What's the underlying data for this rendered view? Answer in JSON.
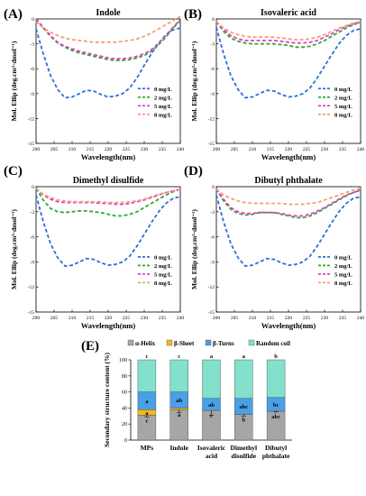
{
  "chart_data": [
    {
      "panel": "(A)",
      "type": "line",
      "title": "Indole",
      "xlabel": "Wavelength(nm)",
      "ylabel": "Mol. Ellip (deg.cm²·dmol⁻¹)",
      "xlim": [
        200,
        240
      ],
      "ylim": [
        -15,
        0
      ],
      "x_ticks": [
        "200",
        "205",
        "210",
        "215",
        "220",
        "225",
        "230",
        "235",
        "240"
      ],
      "y_ticks": [
        "0",
        "-3",
        "-6",
        "-9",
        "-12",
        "-15"
      ],
      "legend_position": "right",
      "series": [
        {
          "name": "0 mg/L",
          "color": "#2e6fd8",
          "x": [
            200,
            202,
            204,
            206,
            208,
            210,
            212,
            214,
            216,
            218,
            220,
            222,
            224,
            226,
            228,
            230,
            232,
            234,
            236,
            238,
            240
          ],
          "y": [
            -1.2,
            -4.2,
            -6.8,
            -8.5,
            -9.5,
            -9.4,
            -9.0,
            -8.6,
            -8.7,
            -9.1,
            -9.4,
            -9.3,
            -9.0,
            -8.3,
            -7.1,
            -5.6,
            -4.2,
            -2.9,
            -1.9,
            -1.3,
            -1.1
          ]
        },
        {
          "name": "2 mg/L",
          "color": "#2eaa2e",
          "x": [
            200,
            202,
            204,
            206,
            208,
            210,
            212,
            214,
            216,
            218,
            220,
            222,
            224,
            226,
            228,
            230,
            232,
            234,
            236,
            238,
            240
          ],
          "y": [
            0,
            -1.1,
            -2.1,
            -2.9,
            -3.4,
            -3.8,
            -4.1,
            -4.3,
            -4.5,
            -4.7,
            -4.9,
            -5.0,
            -5.0,
            -4.9,
            -4.7,
            -4.4,
            -3.9,
            -3.1,
            -2.2,
            -1.1,
            -0.2
          ]
        },
        {
          "name": "5 mg/L",
          "color": "#e040c8",
          "x": [
            200,
            202,
            204,
            206,
            208,
            210,
            212,
            214,
            216,
            218,
            220,
            222,
            224,
            226,
            228,
            230,
            232,
            234,
            236,
            238,
            240
          ],
          "y": [
            0,
            -1.0,
            -2.0,
            -2.8,
            -3.3,
            -3.6,
            -3.9,
            -4.1,
            -4.3,
            -4.5,
            -4.7,
            -4.8,
            -4.8,
            -4.7,
            -4.5,
            -4.2,
            -3.7,
            -2.9,
            -2.0,
            -1.0,
            -0.1
          ]
        },
        {
          "name": "8 mg/L",
          "color": "#f0a078",
          "x": [
            200,
            202,
            204,
            206,
            208,
            210,
            212,
            214,
            216,
            218,
            220,
            222,
            224,
            226,
            228,
            230,
            232,
            234,
            236,
            238,
            240
          ],
          "y": [
            -0.3,
            -1.1,
            -1.6,
            -2.0,
            -2.3,
            -2.5,
            -2.6,
            -2.7,
            -2.8,
            -2.8,
            -2.8,
            -2.8,
            -2.7,
            -2.6,
            -2.4,
            -2.1,
            -1.7,
            -1.2,
            -0.7,
            -0.2,
            0.3
          ]
        }
      ]
    },
    {
      "panel": "(B)",
      "type": "line",
      "title": "Isovaleric acid",
      "xlabel": "Wavelength(nm)",
      "ylabel": "Mol. Ellip (deg.cm²·dmol⁻¹)",
      "xlim": [
        200,
        240
      ],
      "ylim": [
        -15,
        0
      ],
      "x_ticks": [
        "200",
        "205",
        "210",
        "215",
        "220",
        "225",
        "230",
        "235",
        "240"
      ],
      "y_ticks": [
        "0",
        "-3",
        "-6",
        "-9",
        "-12",
        "-15"
      ],
      "legend_position": "right",
      "series": [
        {
          "name": "0 mg/L",
          "color": "#2e6fd8",
          "x": [
            200,
            202,
            204,
            206,
            208,
            210,
            212,
            214,
            216,
            218,
            220,
            222,
            224,
            226,
            228,
            230,
            232,
            234,
            236,
            238,
            240
          ],
          "y": [
            -1.0,
            -4.2,
            -6.8,
            -8.5,
            -9.5,
            -9.4,
            -9.0,
            -8.6,
            -8.7,
            -9.1,
            -9.4,
            -9.3,
            -9.0,
            -8.3,
            -7.1,
            -5.7,
            -4.3,
            -3.0,
            -2.0,
            -1.4,
            -1.2
          ]
        },
        {
          "name": "2 mg/L",
          "color": "#2eaa2e",
          "x": [
            200,
            202,
            204,
            206,
            208,
            210,
            212,
            214,
            216,
            218,
            220,
            222,
            224,
            226,
            228,
            230,
            232,
            234,
            236,
            238,
            240
          ],
          "y": [
            -0.3,
            -1.5,
            -2.3,
            -2.7,
            -2.9,
            -3.0,
            -3.0,
            -3.0,
            -3.0,
            -3.1,
            -3.2,
            -3.4,
            -3.4,
            -3.3,
            -3.0,
            -2.6,
            -2.1,
            -1.6,
            -1.1,
            -0.7,
            -0.4
          ]
        },
        {
          "name": "5 mg/L",
          "color": "#e040c8",
          "x": [
            200,
            202,
            204,
            206,
            208,
            210,
            212,
            214,
            216,
            218,
            220,
            222,
            224,
            226,
            228,
            230,
            232,
            234,
            236,
            238,
            240
          ],
          "y": [
            -0.3,
            -1.3,
            -2.0,
            -2.4,
            -2.6,
            -2.6,
            -2.6,
            -2.6,
            -2.6,
            -2.7,
            -2.8,
            -2.9,
            -2.9,
            -2.8,
            -2.6,
            -2.2,
            -1.8,
            -1.3,
            -0.9,
            -0.6,
            -0.4
          ]
        },
        {
          "name": "8 mg/L",
          "color": "#f0a078",
          "x": [
            200,
            202,
            204,
            206,
            208,
            210,
            212,
            214,
            216,
            218,
            220,
            222,
            224,
            226,
            228,
            230,
            232,
            234,
            236,
            238,
            240
          ],
          "y": [
            -0.3,
            -1.1,
            -1.6,
            -1.9,
            -2.1,
            -2.2,
            -2.2,
            -2.2,
            -2.2,
            -2.3,
            -2.4,
            -2.5,
            -2.5,
            -2.4,
            -2.2,
            -1.9,
            -1.5,
            -1.1,
            -0.8,
            -0.5,
            -0.3
          ]
        }
      ]
    },
    {
      "panel": "(C)",
      "type": "line",
      "title": "Dimethyl disulfide",
      "xlabel": "Wavelength(nm)",
      "ylabel": "Mol. Ellip (deg.cm²·dmol⁻¹)",
      "xlim": [
        200,
        240
      ],
      "ylim": [
        -15,
        0
      ],
      "x_ticks": [
        "200",
        "205",
        "210",
        "215",
        "220",
        "225",
        "230",
        "235",
        "240"
      ],
      "y_ticks": [
        "0",
        "-3",
        "-6",
        "-9",
        "-12",
        "-15"
      ],
      "legend_position": "right",
      "series": [
        {
          "name": "0 mg/L",
          "color": "#2e6fd8",
          "x": [
            200,
            202,
            204,
            206,
            208,
            210,
            212,
            214,
            216,
            218,
            220,
            222,
            224,
            226,
            228,
            230,
            232,
            234,
            236,
            238,
            240
          ],
          "y": [
            -1.0,
            -4.2,
            -6.8,
            -8.5,
            -9.5,
            -9.4,
            -9.0,
            -8.6,
            -8.7,
            -9.1,
            -9.4,
            -9.3,
            -9.0,
            -8.3,
            -7.1,
            -5.7,
            -4.3,
            -3.0,
            -2.0,
            -1.4,
            -1.2
          ]
        },
        {
          "name": "2 mg/L",
          "color": "#2eaa2e",
          "x": [
            200,
            202,
            204,
            206,
            208,
            210,
            212,
            214,
            216,
            218,
            220,
            222,
            224,
            226,
            228,
            230,
            232,
            234,
            236,
            238,
            240
          ],
          "y": [
            -0.2,
            -1.6,
            -2.6,
            -3.0,
            -3.1,
            -3.0,
            -2.9,
            -2.9,
            -3.0,
            -3.1,
            -3.3,
            -3.5,
            -3.5,
            -3.3,
            -3.0,
            -2.5,
            -2.0,
            -1.5,
            -1.0,
            -0.6,
            -0.3
          ]
        },
        {
          "name": "5 mg/L",
          "color": "#e040c8",
          "x": [
            200,
            202,
            204,
            206,
            208,
            210,
            212,
            214,
            216,
            218,
            220,
            222,
            224,
            226,
            228,
            230,
            232,
            234,
            236,
            238,
            240
          ],
          "y": [
            -0.2,
            -1.0,
            -1.5,
            -1.8,
            -1.9,
            -1.9,
            -1.9,
            -1.9,
            -1.9,
            -2.0,
            -2.0,
            -2.1,
            -2.1,
            -2.0,
            -1.8,
            -1.6,
            -1.3,
            -1.0,
            -0.7,
            -0.5,
            -0.3
          ]
        },
        {
          "name": "8 mg/L",
          "color": "#f0a078",
          "x": [
            200,
            202,
            204,
            206,
            208,
            210,
            212,
            214,
            216,
            218,
            220,
            222,
            224,
            226,
            228,
            230,
            232,
            234,
            236,
            238,
            240
          ],
          "y": [
            -0.2,
            -0.9,
            -1.3,
            -1.6,
            -1.7,
            -1.8,
            -1.8,
            -1.8,
            -1.8,
            -1.8,
            -1.9,
            -1.9,
            -1.9,
            -1.8,
            -1.7,
            -1.5,
            -1.2,
            -0.9,
            -0.7,
            -0.5,
            -0.3
          ]
        }
      ]
    },
    {
      "panel": "(D)",
      "type": "line",
      "title": "Dibutyl phthalate",
      "xlabel": "Wavelength(nm)",
      "ylabel": "Mol. Ellip (deg.cm²·dmol⁻¹)",
      "xlim": [
        200,
        240
      ],
      "ylim": [
        -15,
        0
      ],
      "x_ticks": [
        "200",
        "205",
        "210",
        "215",
        "220",
        "225",
        "230",
        "235",
        "240"
      ],
      "y_ticks": [
        "0",
        "-3",
        "-6",
        "-9",
        "-12",
        "-15"
      ],
      "legend_position": "right",
      "series": [
        {
          "name": "0 mg/L",
          "color": "#2e6fd8",
          "x": [
            200,
            202,
            204,
            206,
            208,
            210,
            212,
            214,
            216,
            218,
            220,
            222,
            224,
            226,
            228,
            230,
            232,
            234,
            236,
            238,
            240
          ],
          "y": [
            -1.0,
            -4.2,
            -6.8,
            -8.5,
            -9.5,
            -9.4,
            -9.0,
            -8.6,
            -8.7,
            -9.1,
            -9.4,
            -9.3,
            -9.0,
            -8.3,
            -7.1,
            -5.7,
            -4.3,
            -3.0,
            -2.0,
            -1.4,
            -1.2
          ]
        },
        {
          "name": "2 mg/L",
          "color": "#2eaa2e",
          "x": [
            200,
            202,
            204,
            206,
            208,
            210,
            212,
            214,
            216,
            218,
            220,
            222,
            224,
            226,
            228,
            230,
            232,
            234,
            236,
            238,
            240
          ],
          "y": [
            -0.2,
            -1.7,
            -2.7,
            -3.2,
            -3.4,
            -3.3,
            -3.1,
            -3.1,
            -3.1,
            -3.3,
            -3.5,
            -3.7,
            -3.7,
            -3.5,
            -3.1,
            -2.6,
            -2.1,
            -1.6,
            -1.1,
            -0.7,
            -0.4
          ]
        },
        {
          "name": "5 mg/L",
          "color": "#e040c8",
          "x": [
            200,
            202,
            204,
            206,
            208,
            210,
            212,
            214,
            216,
            218,
            220,
            222,
            224,
            226,
            228,
            230,
            232,
            234,
            236,
            238,
            240
          ],
          "y": [
            -0.3,
            -1.5,
            -2.5,
            -3.0,
            -3.2,
            -3.2,
            -3.1,
            -3.1,
            -3.1,
            -3.2,
            -3.4,
            -3.5,
            -3.5,
            -3.3,
            -2.9,
            -2.5,
            -2.0,
            -1.5,
            -1.0,
            -0.7,
            -0.4
          ]
        },
        {
          "name": "8 mg/L",
          "color": "#f0a078",
          "x": [
            200,
            202,
            204,
            206,
            208,
            210,
            212,
            214,
            216,
            218,
            220,
            222,
            224,
            226,
            228,
            230,
            232,
            234,
            236,
            238,
            240
          ],
          "y": [
            -0.3,
            -1.0,
            -1.4,
            -1.7,
            -1.9,
            -2.0,
            -2.0,
            -2.0,
            -2.0,
            -2.0,
            -2.1,
            -2.1,
            -2.1,
            -2.0,
            -1.9,
            -1.6,
            -1.3,
            -1.0,
            -0.7,
            -0.4,
            -0.2
          ]
        }
      ]
    },
    {
      "panel": "(E)",
      "type": "bar",
      "stacked": true,
      "ylabel": "Secondary structure content (%)",
      "ylim": [
        0,
        100
      ],
      "y_ticks": [
        "0",
        "20",
        "40",
        "60",
        "80",
        "100"
      ],
      "categories": [
        "MPs",
        "Indole",
        "Isovaleric\nacid",
        "Dimethyl\ndisulfide",
        "Dibutyl\nphthalate"
      ],
      "legend_position": "top",
      "series": [
        {
          "name": "α-Helix",
          "color": "#a6a6a6",
          "values": [
            31,
            38,
            37,
            32,
            36
          ],
          "errors": [
            2,
            4,
            6,
            2,
            1
          ],
          "labels": [
            "c",
            "a",
            "c",
            "b",
            "abc"
          ]
        },
        {
          "name": "β-Sheet",
          "color": "#f5b61e",
          "values": [
            7,
            2,
            0,
            0,
            0
          ],
          "labels": [
            "a",
            "",
            "",
            "",
            ""
          ]
        },
        {
          "name": "β-Turns",
          "color": "#4aa0e6",
          "values": [
            22,
            20,
            15,
            20,
            17
          ],
          "labels": [
            "a",
            "ab",
            "ab",
            "abc",
            "bc"
          ]
        },
        {
          "name": "Random coil",
          "color": "#82e0cc",
          "values": [
            40,
            40,
            48,
            48,
            47
          ],
          "labels": [
            "c",
            "c",
            "a",
            "a",
            "b"
          ]
        }
      ]
    }
  ]
}
